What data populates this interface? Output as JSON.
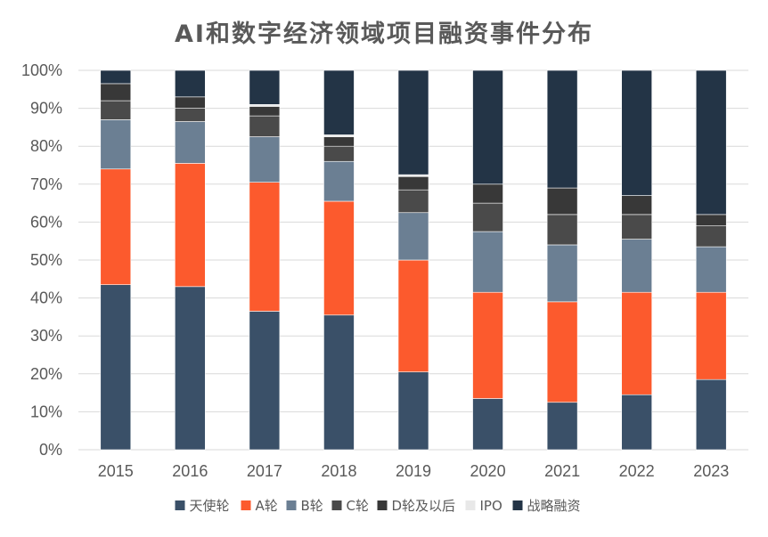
{
  "chart_data": {
    "type": "bar",
    "stacked": true,
    "percent": true,
    "title": "AI和数字经济领域项目融资事件分布",
    "categories": [
      "2015",
      "2016",
      "2017",
      "2018",
      "2019",
      "2020",
      "2021",
      "2022",
      "2023"
    ],
    "y_ticks": [
      "0%",
      "10%",
      "20%",
      "30%",
      "40%",
      "50%",
      "60%",
      "70%",
      "80%",
      "90%",
      "100%"
    ],
    "ylim": [
      0,
      100
    ],
    "grid": true,
    "legend_position": "bottom",
    "series": [
      {
        "name": "天使轮",
        "color": "#3a5068",
        "values": [
          43.5,
          43.0,
          36.5,
          35.5,
          20.5,
          13.5,
          12.5,
          14.5,
          18.5
        ]
      },
      {
        "name": "A轮",
        "color": "#fc5a2d",
        "values": [
          30.5,
          32.5,
          34.0,
          30.0,
          29.5,
          28.0,
          26.5,
          27.0,
          23.0
        ]
      },
      {
        "name": "B轮",
        "color": "#6b7f93",
        "values": [
          13.0,
          11.0,
          12.0,
          10.5,
          12.5,
          16.0,
          15.0,
          14.0,
          12.0
        ]
      },
      {
        "name": "C轮",
        "color": "#4a4a4a",
        "values": [
          5.0,
          3.5,
          5.5,
          4.0,
          6.0,
          7.5,
          8.0,
          6.5,
          5.5
        ]
      },
      {
        "name": "D轮及以后",
        "color": "#383838",
        "values": [
          4.5,
          3.0,
          2.5,
          2.5,
          3.5,
          5.0,
          7.0,
          5.0,
          3.0
        ]
      },
      {
        "name": "IPO",
        "color": "#e8e8e8",
        "values": [
          0.0,
          0.0,
          0.5,
          0.5,
          0.5,
          0.0,
          0.0,
          0.0,
          0.0
        ]
      },
      {
        "name": "战略融资",
        "color": "#233446",
        "values": [
          3.5,
          7.0,
          9.0,
          17.0,
          27.5,
          30.0,
          31.0,
          33.0,
          38.0
        ]
      }
    ]
  }
}
